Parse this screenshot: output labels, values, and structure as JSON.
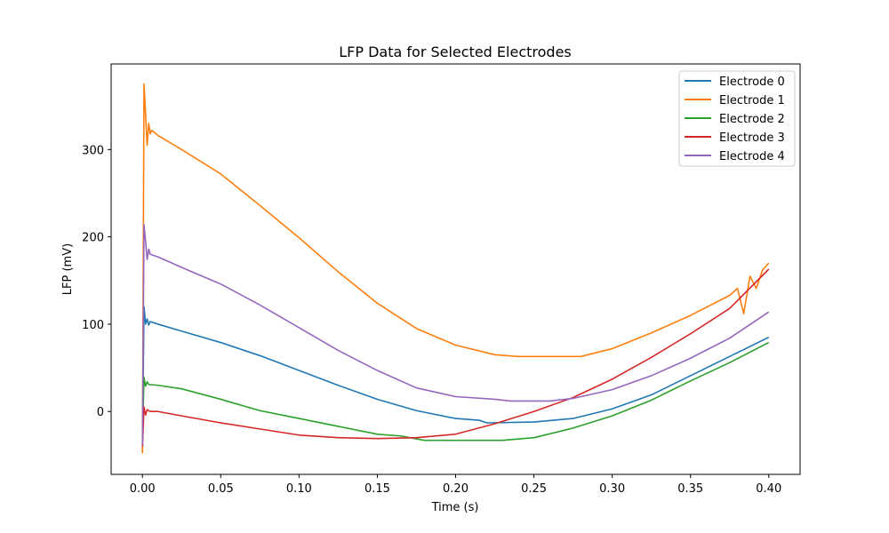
{
  "chart_data": {
    "type": "line",
    "title": "LFP Data for Selected Electrodes",
    "xlabel": "Time (s)",
    "ylabel": "LFP (mV)",
    "xlim": [
      -0.02,
      0.42
    ],
    "ylim": [
      -72,
      398
    ],
    "xticks": [
      0.0,
      0.05,
      0.1,
      0.15,
      0.2,
      0.25,
      0.3,
      0.35,
      0.4
    ],
    "xtick_labels": [
      "0.00",
      "0.05",
      "0.10",
      "0.15",
      "0.20",
      "0.25",
      "0.30",
      "0.35",
      "0.40"
    ],
    "yticks": [
      0,
      100,
      200,
      300
    ],
    "ytick_labels": [
      "0",
      "100",
      "200",
      "300"
    ],
    "grid": false,
    "legend_position": "top-right",
    "series": [
      {
        "name": "Electrode 0",
        "color": "#1f77b4",
        "points": [
          [
            0.0,
            -45
          ],
          [
            0.001,
            120
          ],
          [
            0.002,
            100
          ],
          [
            0.003,
            106
          ],
          [
            0.004,
            99
          ],
          [
            0.005,
            103
          ],
          [
            0.01,
            100
          ],
          [
            0.025,
            92
          ],
          [
            0.05,
            79
          ],
          [
            0.075,
            64
          ],
          [
            0.1,
            47
          ],
          [
            0.125,
            30
          ],
          [
            0.15,
            14
          ],
          [
            0.175,
            1
          ],
          [
            0.2,
            -8
          ],
          [
            0.215,
            -10
          ],
          [
            0.22,
            -13
          ],
          [
            0.25,
            -12
          ],
          [
            0.275,
            -8
          ],
          [
            0.3,
            3
          ],
          [
            0.325,
            19
          ],
          [
            0.35,
            41
          ],
          [
            0.375,
            63
          ],
          [
            0.4,
            85
          ]
        ]
      },
      {
        "name": "Electrode 1",
        "color": "#ff7f0e",
        "points": [
          [
            0.0,
            -48
          ],
          [
            0.001,
            375
          ],
          [
            0.002,
            340
          ],
          [
            0.003,
            305
          ],
          [
            0.004,
            330
          ],
          [
            0.005,
            318
          ],
          [
            0.006,
            322
          ],
          [
            0.01,
            316
          ],
          [
            0.025,
            300
          ],
          [
            0.05,
            272
          ],
          [
            0.075,
            236
          ],
          [
            0.1,
            199
          ],
          [
            0.125,
            160
          ],
          [
            0.15,
            124
          ],
          [
            0.175,
            95
          ],
          [
            0.2,
            76
          ],
          [
            0.225,
            65
          ],
          [
            0.24,
            63
          ],
          [
            0.28,
            63
          ],
          [
            0.3,
            72
          ],
          [
            0.325,
            90
          ],
          [
            0.35,
            110
          ],
          [
            0.375,
            133
          ],
          [
            0.38,
            141
          ],
          [
            0.384,
            112
          ],
          [
            0.388,
            155
          ],
          [
            0.392,
            141
          ],
          [
            0.396,
            162
          ],
          [
            0.4,
            170
          ]
        ]
      },
      {
        "name": "Electrode 2",
        "color": "#2ca02c",
        "points": [
          [
            0.0,
            -30
          ],
          [
            0.001,
            39
          ],
          [
            0.002,
            29
          ],
          [
            0.003,
            34
          ],
          [
            0.004,
            31
          ],
          [
            0.01,
            30
          ],
          [
            0.025,
            26
          ],
          [
            0.05,
            14
          ],
          [
            0.075,
            1
          ],
          [
            0.1,
            -8
          ],
          [
            0.125,
            -17
          ],
          [
            0.15,
            -26
          ],
          [
            0.165,
            -28
          ],
          [
            0.18,
            -33
          ],
          [
            0.2,
            -33
          ],
          [
            0.23,
            -33
          ],
          [
            0.25,
            -30
          ],
          [
            0.275,
            -19
          ],
          [
            0.3,
            -5
          ],
          [
            0.325,
            13
          ],
          [
            0.35,
            35
          ],
          [
            0.375,
            56
          ],
          [
            0.4,
            79
          ]
        ]
      },
      {
        "name": "Electrode 3",
        "color": "#d62728",
        "points": [
          [
            0.0,
            -40
          ],
          [
            0.001,
            5
          ],
          [
            0.002,
            -4
          ],
          [
            0.003,
            2
          ],
          [
            0.005,
            0
          ],
          [
            0.01,
            0
          ],
          [
            0.025,
            -5
          ],
          [
            0.05,
            -13
          ],
          [
            0.075,
            -20
          ],
          [
            0.1,
            -27
          ],
          [
            0.125,
            -30
          ],
          [
            0.15,
            -31
          ],
          [
            0.175,
            -30
          ],
          [
            0.2,
            -26
          ],
          [
            0.225,
            -14
          ],
          [
            0.25,
            0
          ],
          [
            0.275,
            16
          ],
          [
            0.3,
            37
          ],
          [
            0.325,
            62
          ],
          [
            0.35,
            89
          ],
          [
            0.375,
            118
          ],
          [
            0.4,
            163
          ]
        ]
      },
      {
        "name": "Electrode 4",
        "color": "#9467bd",
        "points": [
          [
            0.0,
            -38
          ],
          [
            0.001,
            214
          ],
          [
            0.002,
            195
          ],
          [
            0.003,
            174
          ],
          [
            0.004,
            186
          ],
          [
            0.005,
            180
          ],
          [
            0.01,
            177
          ],
          [
            0.025,
            165
          ],
          [
            0.05,
            146
          ],
          [
            0.075,
            122
          ],
          [
            0.1,
            96
          ],
          [
            0.125,
            70
          ],
          [
            0.15,
            47
          ],
          [
            0.175,
            27
          ],
          [
            0.2,
            17
          ],
          [
            0.225,
            14
          ],
          [
            0.235,
            12
          ],
          [
            0.26,
            12
          ],
          [
            0.275,
            15
          ],
          [
            0.3,
            25
          ],
          [
            0.325,
            41
          ],
          [
            0.35,
            61
          ],
          [
            0.375,
            84
          ],
          [
            0.4,
            114
          ]
        ]
      }
    ]
  }
}
